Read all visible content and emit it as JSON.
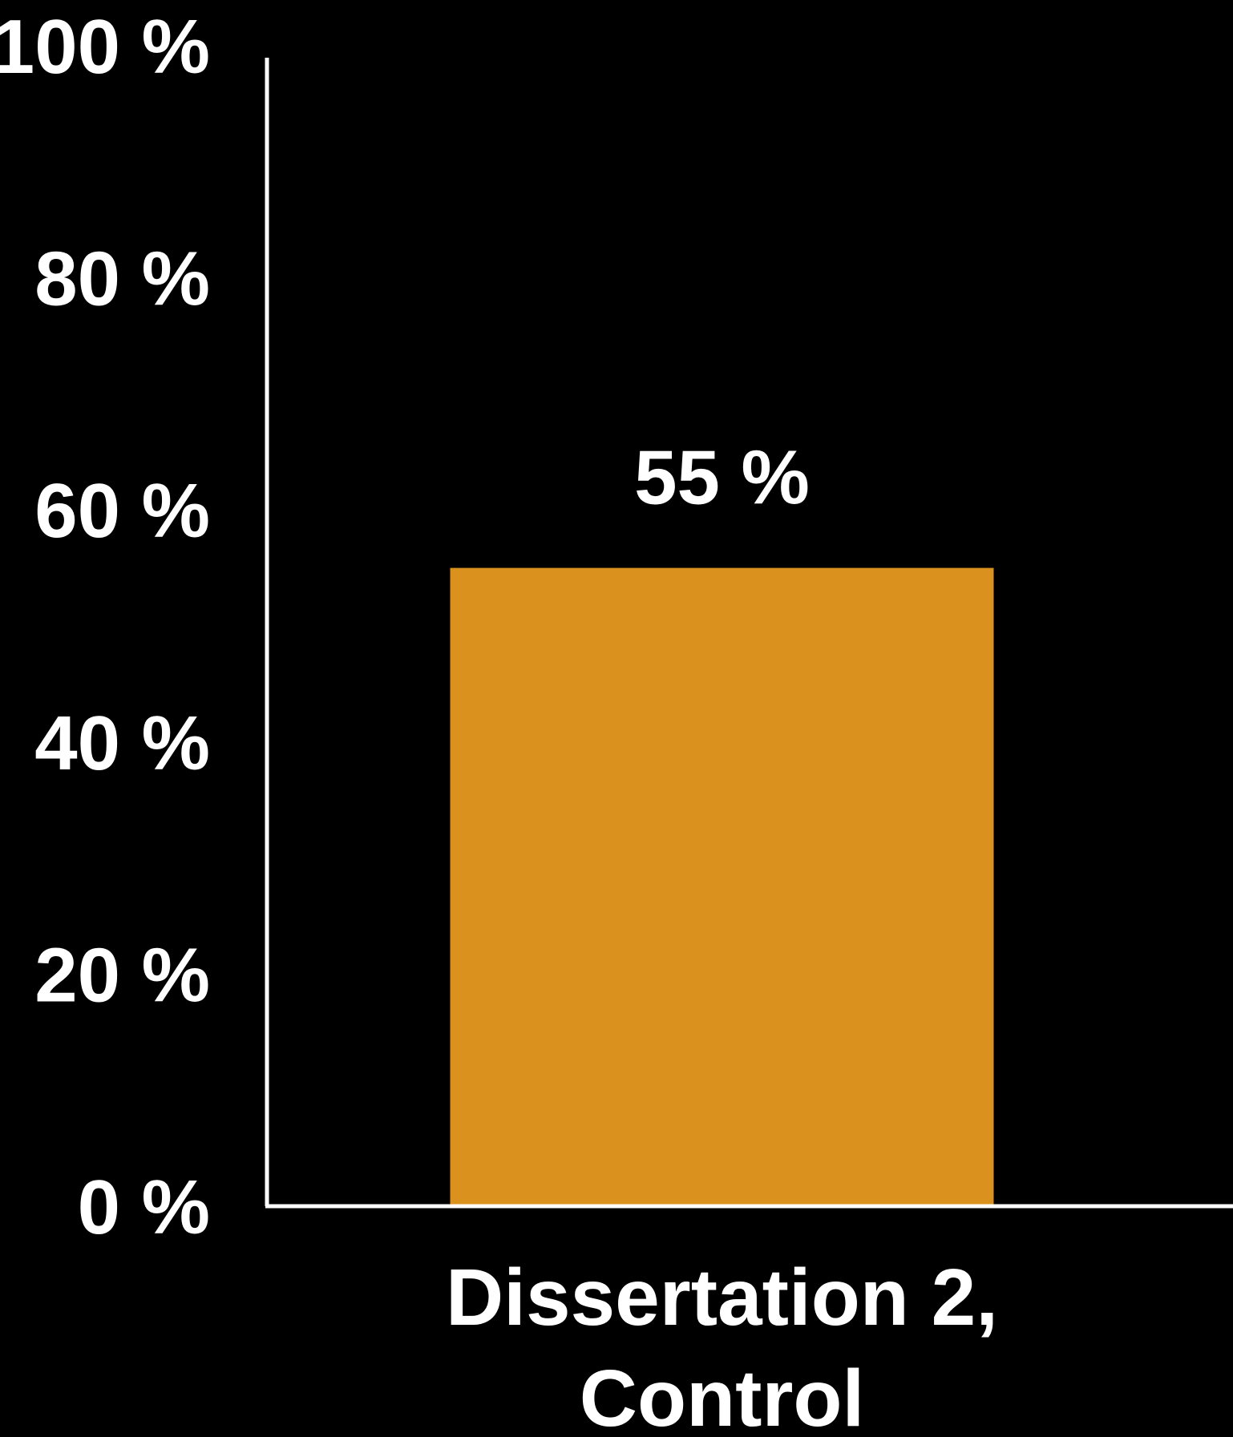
{
  "chart_data": {
    "type": "bar",
    "categories": [
      "Dissertation 2,\nControl"
    ],
    "values": [
      55
    ],
    "value_labels": [
      "55 %"
    ],
    "ylim": [
      0,
      100
    ],
    "y_ticks": [
      0,
      20,
      40,
      60,
      80,
      100
    ],
    "y_tick_labels": [
      "0 %",
      "20 %",
      "40 %",
      "60 %",
      "80 %",
      "100 %"
    ],
    "title": "",
    "xlabel": "",
    "ylabel": "",
    "grid": false,
    "legend": "none",
    "colors": {
      "background": "#000000",
      "bar": "#DB911E",
      "axis": "#ffffff",
      "text": "#ffffff"
    }
  }
}
